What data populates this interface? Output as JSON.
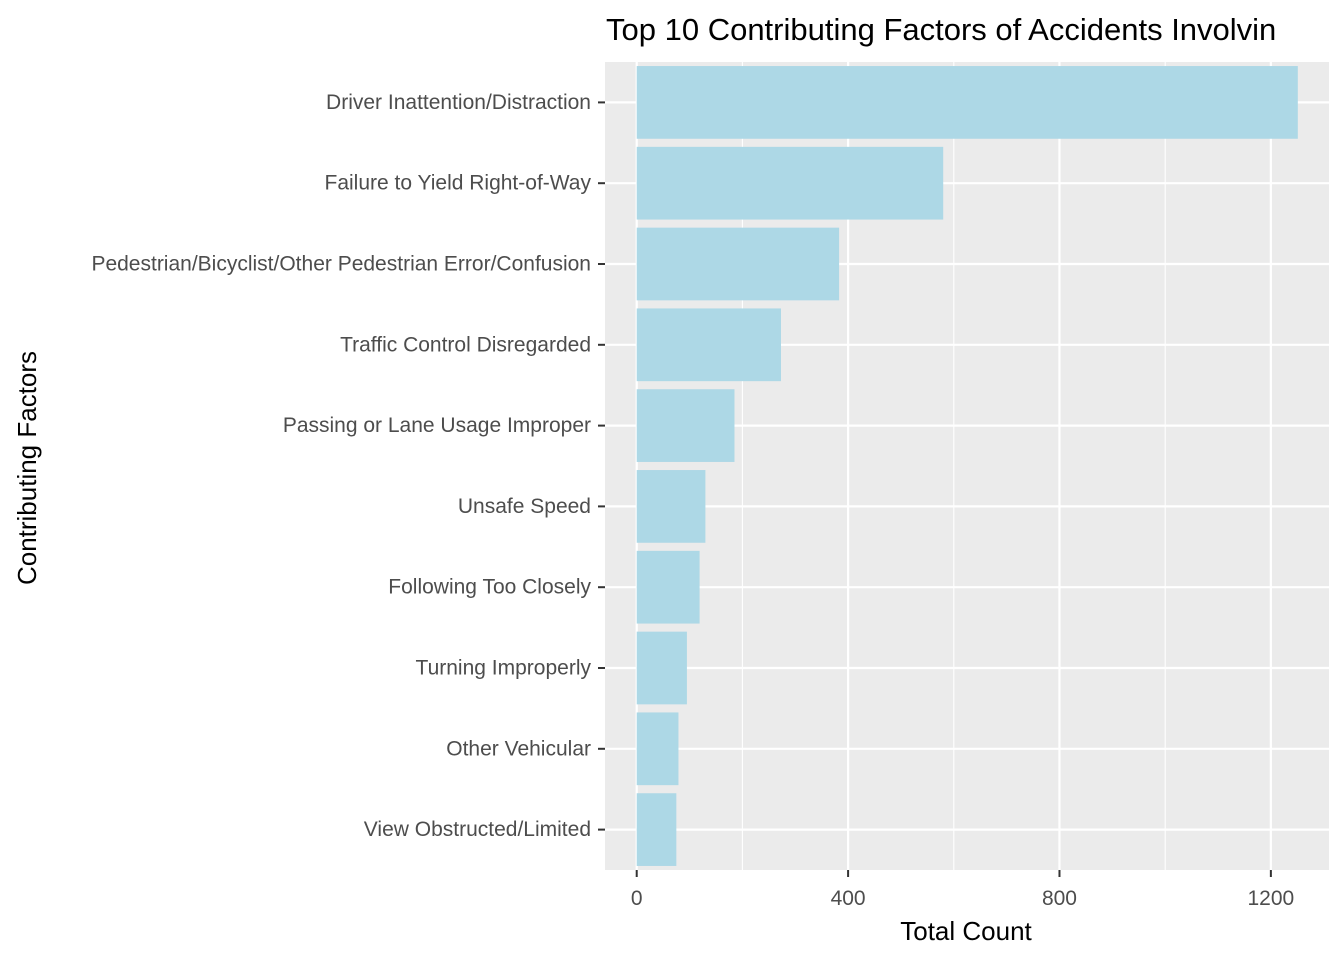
{
  "chart_data": {
    "type": "bar",
    "orientation": "horizontal",
    "title": "Top 10 Contributing Factors of Accidents Involvin",
    "xlabel": "Total Count",
    "ylabel": "Contributing Factors",
    "categories": [
      "Driver Inattention/Distraction",
      "Failure to Yield Right-of-Way",
      "Pedestrian/Bicyclist/Other Pedestrian Error/Confusion",
      "Traffic Control Disregarded",
      "Passing or Lane Usage Improper",
      "Unsafe Speed",
      "Following Too Closely",
      "Turning Improperly",
      "Other Vehicular",
      "View Obstructed/Limited"
    ],
    "values": [
      1251,
      580,
      383,
      273,
      185,
      130,
      119,
      95,
      79,
      75
    ],
    "xlim": [
      -60,
      1310
    ],
    "xticks": [
      0,
      400,
      800,
      1200
    ],
    "xtick_labels": [
      "0",
      "400",
      "800",
      "1200"
    ],
    "bar_color": "#add8e6",
    "panel_color": "#ebebeb",
    "grid_color": "#ffffff",
    "grid": true,
    "legend": "none"
  }
}
